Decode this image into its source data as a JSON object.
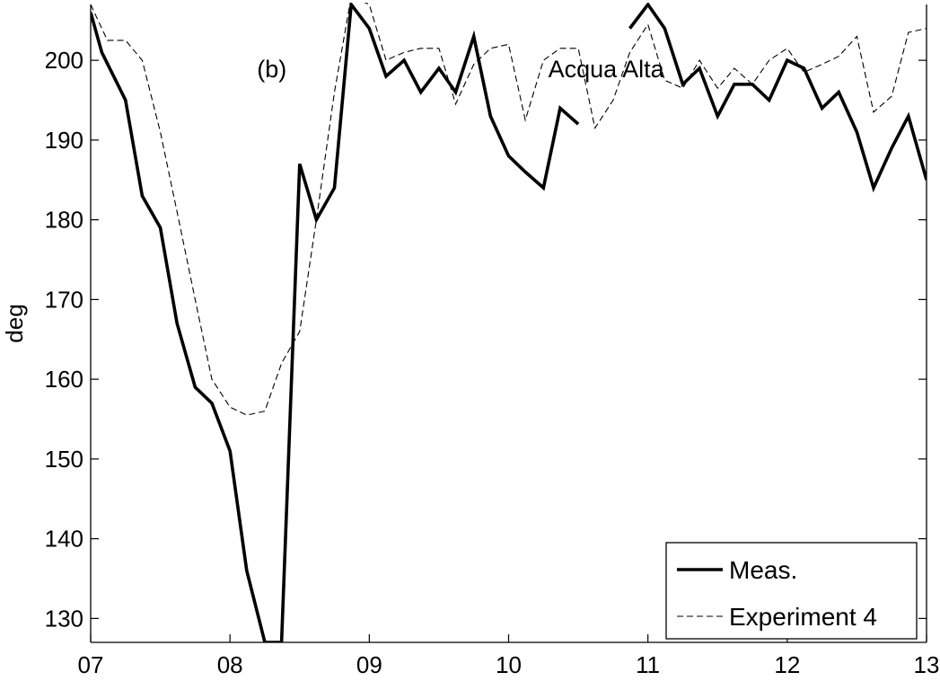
{
  "chart_data": {
    "type": "line",
    "ylabel": "deg",
    "xlim": [
      7,
      13
    ],
    "ylim": [
      127,
      207
    ],
    "xticks": [
      7,
      8,
      9,
      10,
      11,
      12,
      13
    ],
    "xtick_labels": [
      "07",
      "08",
      "09",
      "10",
      "11",
      "12",
      "13"
    ],
    "yticks": [
      130,
      140,
      150,
      160,
      170,
      180,
      190,
      200
    ],
    "ytick_labels": [
      "130",
      "140",
      "150",
      "160",
      "170",
      "180",
      "190",
      "200"
    ],
    "grid": false,
    "legend_position": "bottom-right",
    "annotations": [
      {
        "text": "(b)",
        "x": 8.3,
        "y": 199
      },
      {
        "text": "Acqua Alta",
        "x": 10.7,
        "y": 199
      }
    ],
    "series": [
      {
        "name": "Meas.",
        "style": "solid",
        "color": "#000000",
        "segments": [
          [
            [
              7.0,
              206
            ],
            [
              7.08,
              201
            ],
            [
              7.25,
              195
            ],
            [
              7.37,
              183
            ],
            [
              7.5,
              179
            ],
            [
              7.62,
              167
            ],
            [
              7.75,
              159
            ],
            [
              7.87,
              157
            ],
            [
              8.0,
              151
            ],
            [
              8.12,
              136
            ],
            [
              8.25,
              127
            ],
            [
              8.37,
              127
            ],
            [
              8.5,
              187
            ],
            [
              8.62,
              180
            ],
            [
              8.75,
              184
            ],
            [
              8.87,
              207
            ],
            [
              9.0,
              204
            ],
            [
              9.12,
              198
            ],
            [
              9.25,
              200
            ],
            [
              9.37,
              196
            ],
            [
              9.5,
              199
            ],
            [
              9.62,
              196
            ],
            [
              9.75,
              203
            ],
            [
              9.87,
              193
            ],
            [
              10.0,
              188
            ],
            [
              10.12,
              186
            ],
            [
              10.25,
              184
            ],
            [
              10.37,
              194
            ],
            [
              10.5,
              192
            ]
          ],
          [
            [
              10.87,
              204
            ],
            [
              11.0,
              207
            ],
            [
              11.12,
              204
            ],
            [
              11.25,
              197
            ],
            [
              11.37,
              199
            ],
            [
              11.5,
              193
            ],
            [
              11.62,
              197
            ],
            [
              11.75,
              197
            ],
            [
              11.87,
              195
            ],
            [
              12.0,
              200
            ],
            [
              12.12,
              199
            ],
            [
              12.25,
              194
            ],
            [
              12.37,
              196
            ],
            [
              12.5,
              191
            ],
            [
              12.62,
              184
            ],
            [
              12.75,
              189
            ],
            [
              12.87,
              193
            ],
            [
              13.0,
              185
            ]
          ]
        ]
      },
      {
        "name": "Experiment 4",
        "style": "dashed",
        "color": "#000000",
        "segments": [
          [
            [
              7.0,
              207
            ],
            [
              7.12,
              202.5
            ],
            [
              7.25,
              202.5
            ],
            [
              7.37,
              200
            ],
            [
              7.5,
              191
            ],
            [
              7.62,
              181
            ],
            [
              7.75,
              170
            ],
            [
              7.87,
              160
            ],
            [
              8.0,
              156.5
            ],
            [
              8.12,
              155.5
            ],
            [
              8.25,
              156
            ],
            [
              8.37,
              162
            ],
            [
              8.5,
              166
            ],
            [
              8.62,
              180
            ],
            [
              8.75,
              196
            ],
            [
              8.87,
              208
            ],
            [
              9.0,
              207
            ],
            [
              9.12,
              200
            ],
            [
              9.25,
              201
            ],
            [
              9.37,
              201.5
            ],
            [
              9.5,
              201.5
            ],
            [
              9.62,
              194.5
            ],
            [
              9.75,
              199.5
            ],
            [
              9.87,
              201.5
            ],
            [
              10.0,
              202
            ],
            [
              10.12,
              192.5
            ],
            [
              10.25,
              200
            ],
            [
              10.37,
              201.5
            ],
            [
              10.5,
              201.5
            ],
            [
              10.62,
              191.5
            ],
            [
              10.75,
              195
            ],
            [
              10.87,
              201
            ],
            [
              11.0,
              204.5
            ],
            [
              11.12,
              197.5
            ],
            [
              11.25,
              196.5
            ],
            [
              11.37,
              200
            ],
            [
              11.5,
              196.5
            ],
            [
              11.62,
              199
            ],
            [
              11.75,
              197
            ],
            [
              11.87,
              200
            ],
            [
              12.0,
              201.5
            ],
            [
              12.12,
              198.5
            ],
            [
              12.25,
              199.5
            ],
            [
              12.37,
              200.5
            ],
            [
              12.5,
              203
            ],
            [
              12.62,
              193.5
            ],
            [
              12.75,
              195.5
            ],
            [
              12.87,
              203.5
            ],
            [
              13.0,
              204
            ]
          ]
        ]
      }
    ]
  }
}
